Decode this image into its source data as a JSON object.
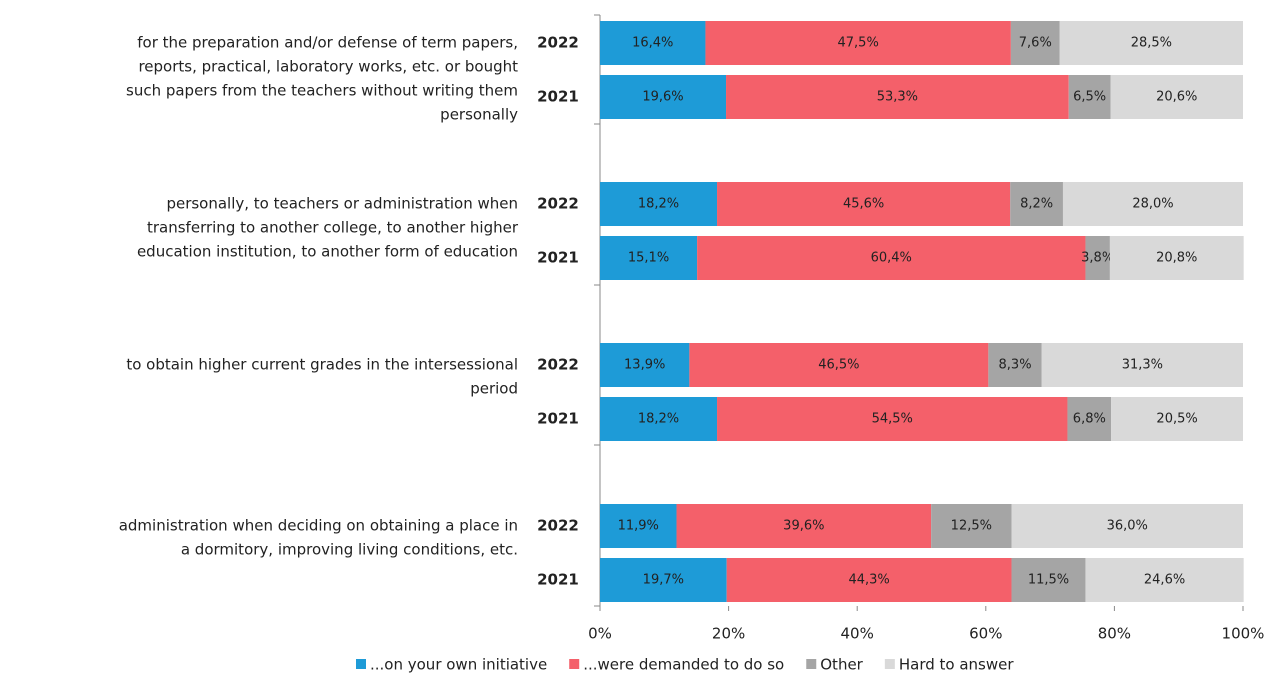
{
  "chart_data": {
    "type": "stacked_bar_horizontal",
    "groups": [
      [
        "for the preparation and/or defense of term papers,",
        "reports, practical, laboratory works, etc. or bought",
        "such papers from the teachers without writing them",
        "personally"
      ],
      [
        "personally, to teachers or administration when",
        "transferring to another college, to another higher",
        "education institution, to another form of education"
      ],
      [
        "to obtain higher current grades in the intersessional",
        "period"
      ],
      [
        "administration when deciding on obtaining a place in",
        "a dormitory, improving living conditions, etc."
      ]
    ],
    "categories": [
      "2022",
      "2021",
      "2022",
      "2021",
      "2022",
      "2021",
      "2022",
      "2021"
    ],
    "series": [
      {
        "name": "...on your own initiative",
        "color": "#1e9bd7",
        "values": [
          16.4,
          19.6,
          18.2,
          15.1,
          13.9,
          18.2,
          11.9,
          19.7
        ],
        "value_labels": [
          "16,4%",
          "19,6%",
          "18,2%",
          "15,1%",
          "13,9%",
          "18,2%",
          "11,9%",
          "19,7%"
        ]
      },
      {
        "name": "...were demanded to do so",
        "color": "#f4606a",
        "values": [
          47.5,
          53.3,
          45.6,
          60.4,
          46.5,
          54.5,
          39.6,
          44.3
        ],
        "value_labels": [
          "47,5%",
          "53,3%",
          "45,6%",
          "60,4%",
          "46,5%",
          "54,5%",
          "39,6%",
          "44,3%"
        ]
      },
      {
        "name": "Other",
        "color": "#a5a5a5",
        "values": [
          7.6,
          6.5,
          8.2,
          3.8,
          8.3,
          6.8,
          12.5,
          11.5
        ],
        "value_labels": [
          "7,6%",
          "6,5%",
          "8,2%",
          "3,8%",
          "8,3%",
          "6,8%",
          "12,5%",
          "11,5%"
        ]
      },
      {
        "name": "Hard to answer",
        "color": "#d9d9d9",
        "values": [
          28.5,
          20.6,
          28.0,
          20.8,
          31.3,
          20.5,
          36.0,
          24.6
        ],
        "value_labels": [
          "28,5%",
          "20,6%",
          "28,0%",
          "20,8%",
          "31,3%",
          "20,5%",
          "36,0%",
          "24,6%"
        ]
      }
    ],
    "xlim": [
      0,
      100
    ],
    "xticks": [
      {
        "value": 0,
        "label": "0%"
      },
      {
        "value": 20,
        "label": "20%"
      },
      {
        "value": 40,
        "label": "40%"
      },
      {
        "value": 60,
        "label": "60%"
      },
      {
        "value": 80,
        "label": "80%"
      },
      {
        "value": 100,
        "label": "100%"
      }
    ],
    "legend": "bottom"
  }
}
